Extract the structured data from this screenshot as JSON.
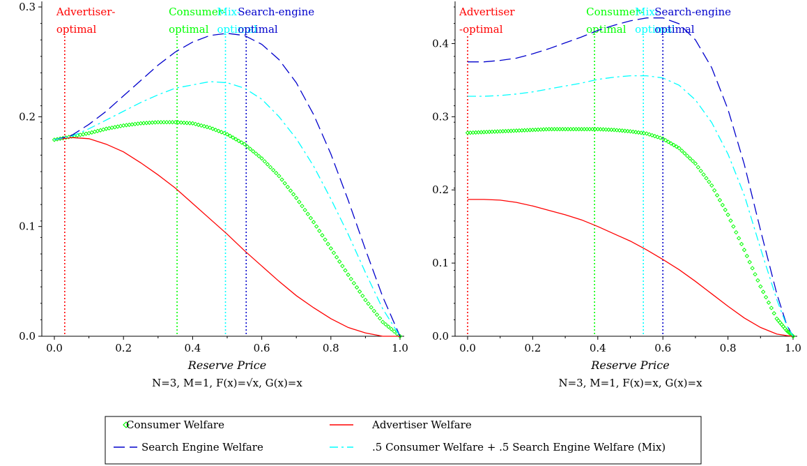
{
  "colors": {
    "consumer": "#00ff00",
    "advertiser": "#ff0000",
    "search": "#0000cc",
    "mix": "#00ffff"
  },
  "chart_data": [
    {
      "type": "line",
      "xlabel": "Reserve Price",
      "subtitle": "N=3, M=1, F(x)=√x, G(x)=x",
      "xlim": [
        0,
        1
      ],
      "ylim": [
        0,
        0.3
      ],
      "xticks": [
        "0.0",
        "0.2",
        "0.4",
        "0.6",
        "0.8",
        "1.0"
      ],
      "yticks": [
        "0.0",
        "0.1",
        "0.2",
        "0.3"
      ],
      "x": [
        0,
        0.05,
        0.1,
        0.15,
        0.2,
        0.25,
        0.3,
        0.35,
        0.4,
        0.45,
        0.5,
        0.55,
        0.6,
        0.65,
        0.7,
        0.75,
        0.8,
        0.85,
        0.9,
        0.95,
        1.0
      ],
      "series": [
        {
          "name": "Consumer Welfare",
          "key": "consumer",
          "style": "diamond",
          "values": [
            0.179,
            0.182,
            0.185,
            0.189,
            0.192,
            0.194,
            0.195,
            0.195,
            0.194,
            0.19,
            0.184,
            0.175,
            0.162,
            0.146,
            0.126,
            0.104,
            0.08,
            0.056,
            0.033,
            0.013,
            0.0
          ]
        },
        {
          "name": "Advertiser Welfare",
          "key": "advertiser",
          "style": "solid",
          "values": [
            0.179,
            0.181,
            0.18,
            0.175,
            0.168,
            0.158,
            0.147,
            0.135,
            0.121,
            0.107,
            0.093,
            0.078,
            0.064,
            0.05,
            0.037,
            0.026,
            0.016,
            0.008,
            0.003,
            0.0,
            0.0
          ]
        },
        {
          "name": "Search Engine Welfare",
          "key": "search",
          "style": "dash",
          "values": [
            0.179,
            0.183,
            0.193,
            0.205,
            0.219,
            0.233,
            0.247,
            0.259,
            0.268,
            0.274,
            0.276,
            0.274,
            0.266,
            0.252,
            0.231,
            0.202,
            0.166,
            0.124,
            0.079,
            0.036,
            0.0
          ]
        },
        {
          "name": ".5 Consumer Welfare + .5 Search Engine Welfare (Mix)",
          "key": "mix",
          "style": "dashdot",
          "values": [
            0.179,
            0.182,
            0.189,
            0.197,
            0.205,
            0.213,
            0.22,
            0.226,
            0.229,
            0.232,
            0.231,
            0.226,
            0.216,
            0.2,
            0.18,
            0.155,
            0.125,
            0.093,
            0.058,
            0.025,
            0.0
          ]
        }
      ],
      "vlines": [
        {
          "key": "advertiser",
          "x": 0.03,
          "label1": "Advertiser-",
          "label2": "optimal"
        },
        {
          "key": "consumer",
          "x": 0.355,
          "label1": "Consumer-",
          "label2": "optimal"
        },
        {
          "key": "mix",
          "x": 0.495,
          "label1": "Mix-",
          "label2": "optimal"
        },
        {
          "key": "search",
          "x": 0.555,
          "label1": "Search-engine",
          "label2": "optimal"
        }
      ]
    },
    {
      "type": "line",
      "xlabel": "Reserve Price",
      "subtitle": "N=3, M=1, F(x)=x, G(x)=x",
      "xlim": [
        0,
        1
      ],
      "ylim": [
        0,
        0.45
      ],
      "xticks": [
        "0.0",
        "0.2",
        "0.4",
        "0.6",
        "0.8",
        "1.0"
      ],
      "yticks": [
        "0.0",
        "0.1",
        "0.2",
        "0.3",
        "0.4"
      ],
      "x": [
        0,
        0.05,
        0.1,
        0.15,
        0.2,
        0.25,
        0.3,
        0.35,
        0.4,
        0.45,
        0.5,
        0.55,
        0.6,
        0.65,
        0.7,
        0.75,
        0.8,
        0.85,
        0.9,
        0.95,
        0.98,
        1.0
      ],
      "series": [
        {
          "name": "Consumer Welfare",
          "key": "consumer",
          "style": "diamond",
          "values": [
            0.278,
            0.279,
            0.28,
            0.281,
            0.282,
            0.283,
            0.283,
            0.283,
            0.283,
            0.282,
            0.28,
            0.277,
            0.27,
            0.257,
            0.236,
            0.206,
            0.166,
            0.118,
            0.068,
            0.024,
            0.008,
            0.0
          ]
        },
        {
          "name": "Advertiser Welfare",
          "key": "advertiser",
          "style": "solid",
          "values": [
            0.187,
            0.187,
            0.186,
            0.183,
            0.178,
            0.172,
            0.166,
            0.159,
            0.15,
            0.14,
            0.13,
            0.118,
            0.105,
            0.091,
            0.075,
            0.058,
            0.041,
            0.025,
            0.012,
            0.003,
            0.001,
            0.0
          ]
        },
        {
          "name": "Search Engine Welfare",
          "key": "search",
          "style": "dash",
          "values": [
            0.375,
            0.375,
            0.377,
            0.38,
            0.386,
            0.393,
            0.401,
            0.409,
            0.418,
            0.425,
            0.431,
            0.435,
            0.435,
            0.427,
            0.405,
            0.367,
            0.31,
            0.235,
            0.145,
            0.058,
            0.016,
            0.0
          ]
        },
        {
          "name": ".5 Consumer Welfare + .5 Search Engine Welfare (Mix)",
          "key": "mix",
          "style": "dashdot",
          "values": [
            0.328,
            0.328,
            0.329,
            0.331,
            0.334,
            0.338,
            0.342,
            0.346,
            0.351,
            0.354,
            0.356,
            0.356,
            0.353,
            0.343,
            0.323,
            0.292,
            0.249,
            0.193,
            0.12,
            0.05,
            0.015,
            0.0
          ]
        }
      ],
      "vlines": [
        {
          "key": "advertiser",
          "x": 0.0,
          "label1": "Advertiser",
          "label2": "-optimal"
        },
        {
          "key": "consumer",
          "x": 0.39,
          "label1": "Consumer-",
          "label2": "optimal"
        },
        {
          "key": "mix",
          "x": 0.54,
          "label1": "Mix-",
          "label2": "optimal"
        },
        {
          "key": "search",
          "x": 0.6,
          "label1": "Search-engine",
          "label2": "optimal"
        }
      ]
    }
  ],
  "legend": {
    "items": [
      {
        "key": "consumer",
        "style": "diamond",
        "label": "Consumer Welfare"
      },
      {
        "key": "advertiser",
        "style": "solid",
        "label": "Advertiser Welfare"
      },
      {
        "key": "search",
        "style": "dash",
        "label": "Search Engine Welfare"
      },
      {
        "key": "mix",
        "style": "dashdot",
        "label": ".5 Consumer Welfare + .5 Search Engine Welfare (Mix)"
      }
    ]
  }
}
